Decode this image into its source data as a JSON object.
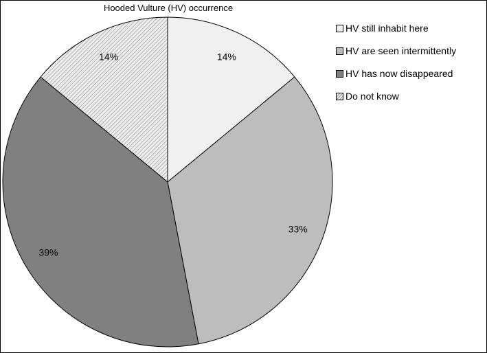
{
  "chart_data": {
    "type": "pie",
    "title": "Hooded Vulture (HV) occurrence",
    "categories": [
      "HV still inhabit here",
      "HV are seen intermittently",
      "HV has now disappeared",
      "Do not know"
    ],
    "values": [
      14,
      33,
      39,
      14
    ],
    "data_labels": [
      "14%",
      "33%",
      "39%",
      "14%"
    ],
    "colors": [
      "#f0f0f0",
      "#bdbdbd",
      "#808080",
      "#e6e6e6"
    ],
    "patterns": [
      "solid",
      "solid",
      "solid",
      "diagonal-hatch"
    ],
    "start_angle": "12 o'clock",
    "direction": "clockwise",
    "legend": "right"
  }
}
